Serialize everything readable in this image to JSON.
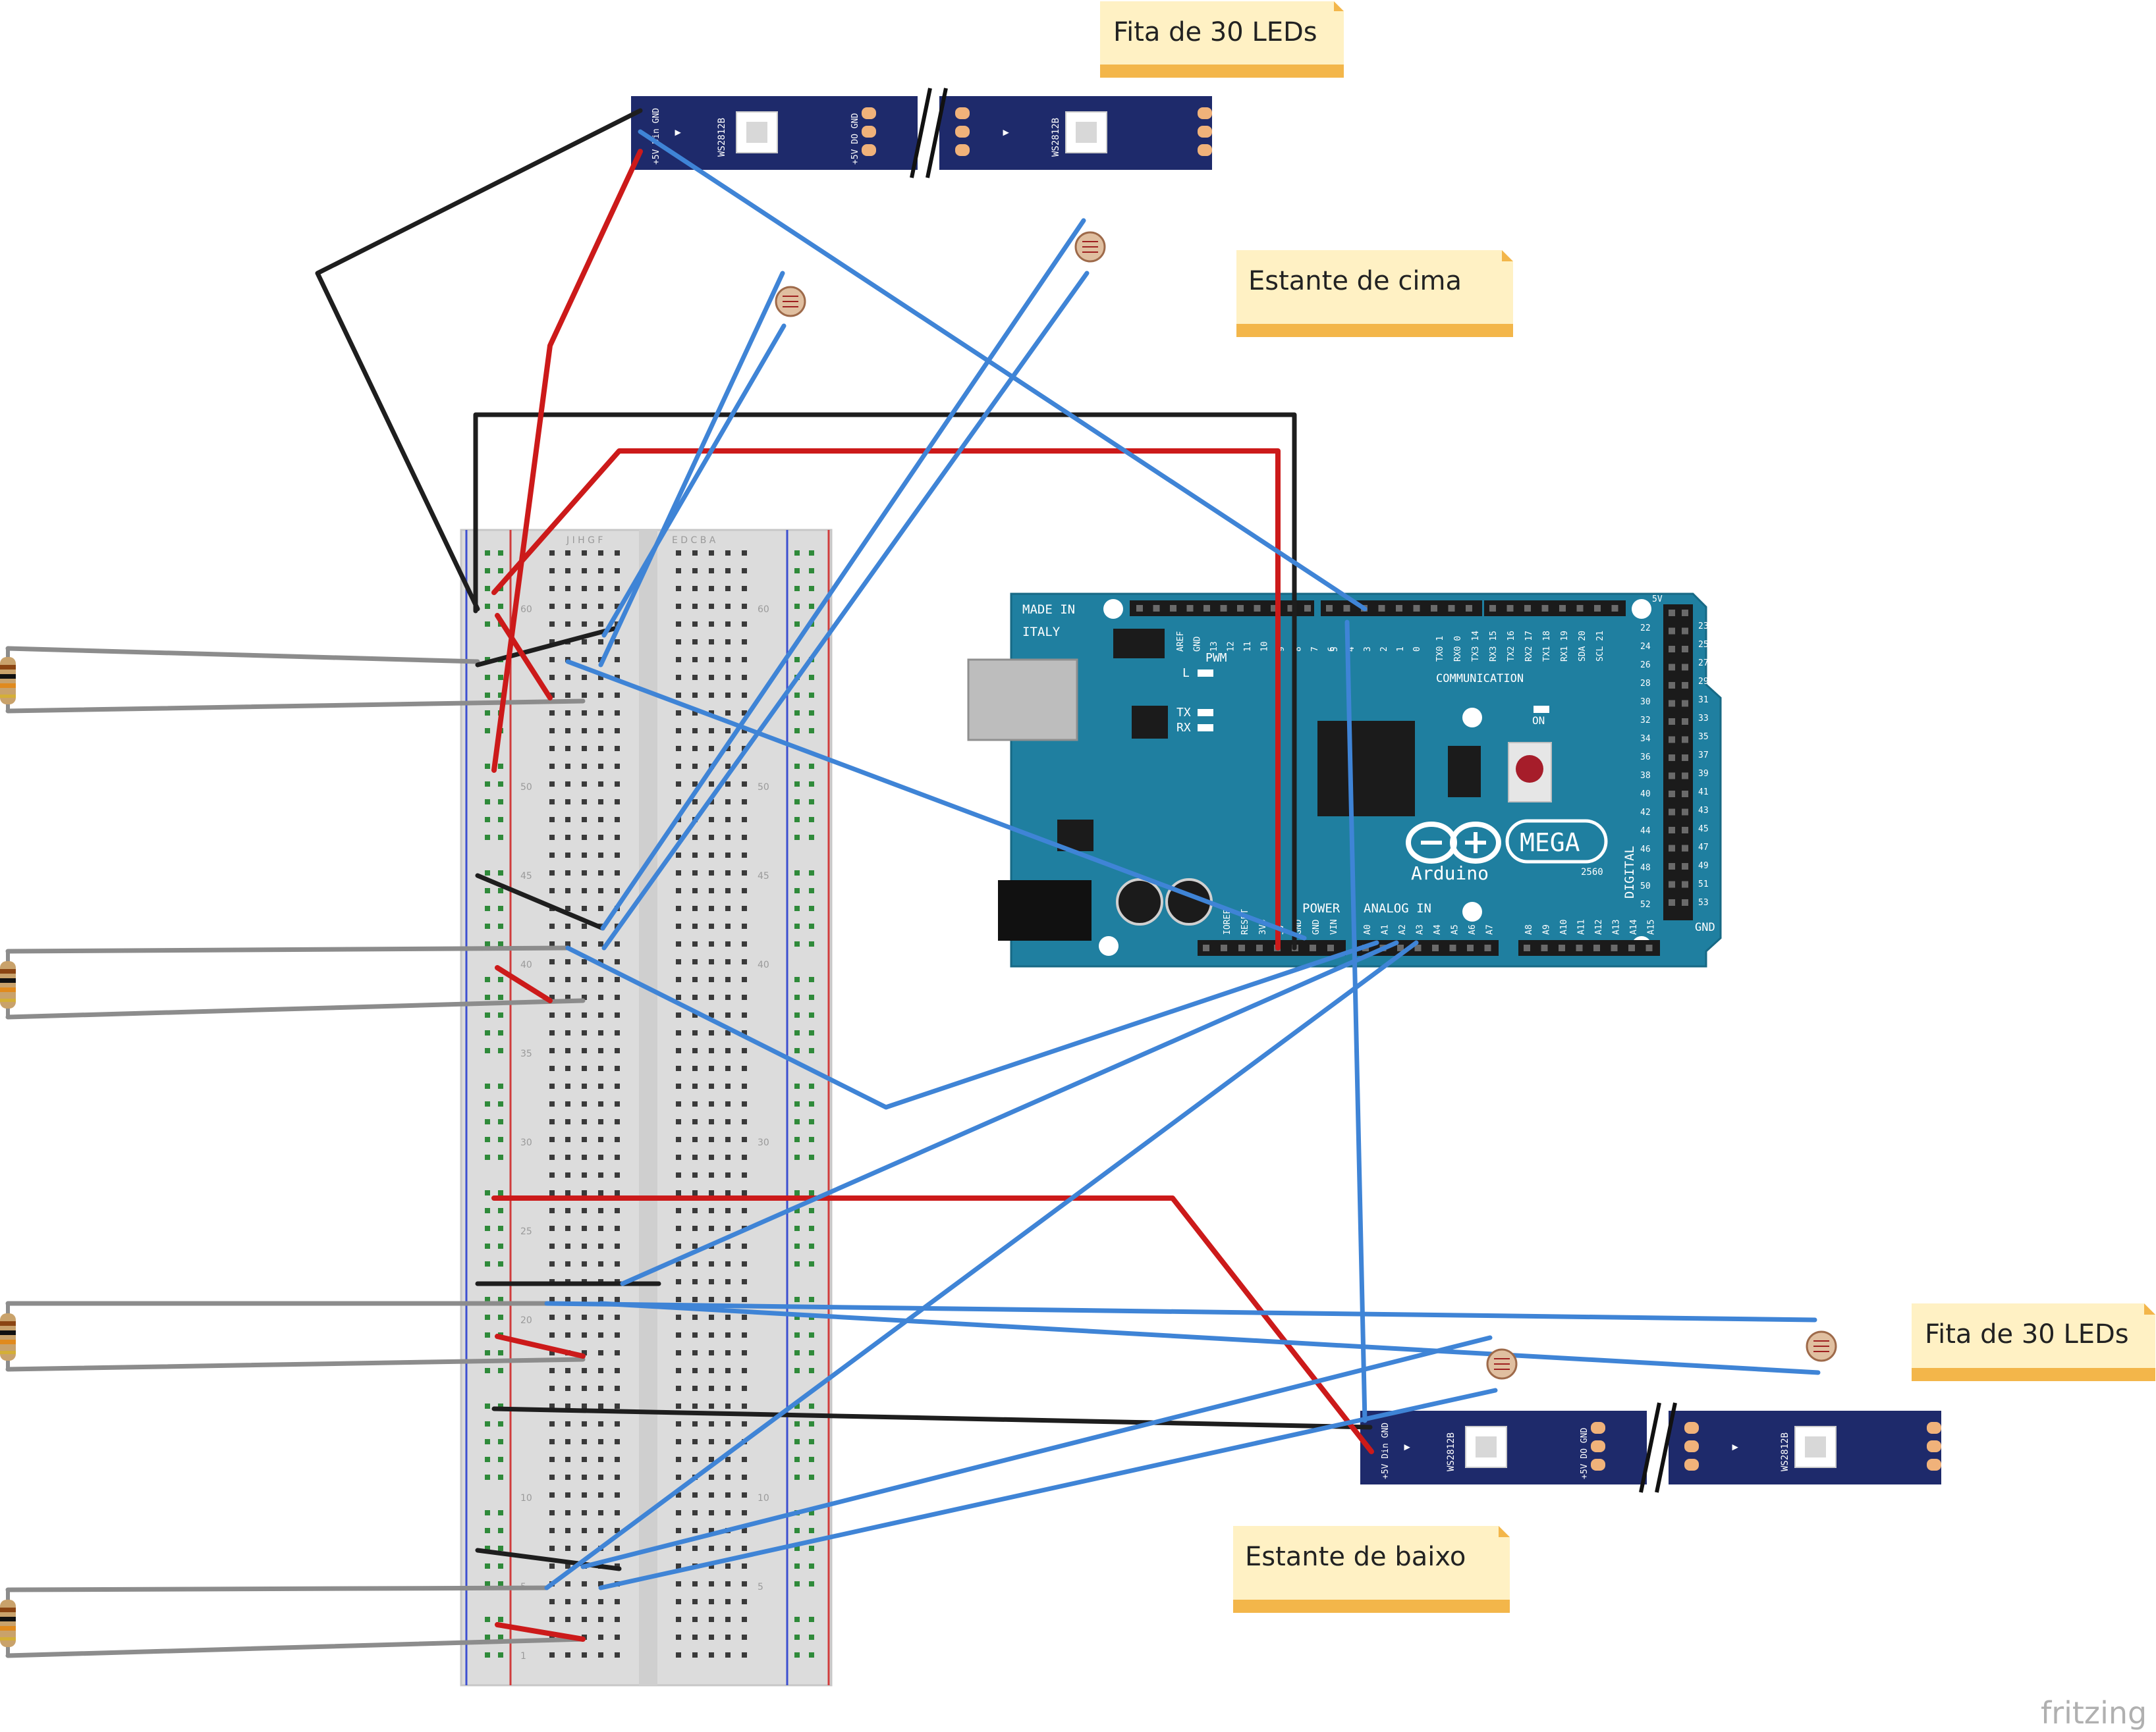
{
  "notes": {
    "top_strip": "Fita de 30 LEDs",
    "top_shelf": "Estante de cima",
    "bottom_strip": "Fita de 30 LEDs",
    "bottom_shelf": "Estante de baixo"
  },
  "led_strip": {
    "chip_label": "WS2812B",
    "pin_left": "+5V Din GND",
    "pin_mid": "+5V DO GND",
    "arrow": "▸"
  },
  "arduino": {
    "made_in": "MADE IN",
    "italy": "ITALY",
    "brand": "Arduino",
    "model": "MEGA",
    "model_sub": "2560",
    "pwm": "PWM",
    "communication": "COMMUNICATION",
    "power": "POWER",
    "analog_in": "ANALOG IN",
    "digital": "DIGITAL",
    "led_l": "L",
    "led_tx": "TX",
    "led_rx": "RX",
    "led_on": "ON",
    "gnd": "GND",
    "top_pins": [
      "AREF",
      "GND",
      "13",
      "12",
      "11",
      "10",
      "9",
      "8",
      "7",
      "6",
      "5",
      "4",
      "3",
      "2",
      "1",
      "0"
    ],
    "comm_pins": [
      "TX0 1",
      "RX0 0",
      "TX3 14",
      "RX3 15",
      "TX2 16",
      "RX2 17",
      "TX1 18",
      "RX1 19",
      "SDA 20",
      "SCL 21"
    ],
    "power_pins": [
      "IOREF",
      "RESET",
      "3V3",
      "5V",
      "GND",
      "GND",
      "VIN"
    ],
    "analog_pins": [
      "A0",
      "A1",
      "A2",
      "A3",
      "A4",
      "A5",
      "A6",
      "A7",
      "A8",
      "A9",
      "A10",
      "A11",
      "A12",
      "A13",
      "A14",
      "A15"
    ],
    "side_left": [
      "22",
      "24",
      "26",
      "28",
      "30",
      "32",
      "34",
      "36",
      "38",
      "40",
      "42",
      "44",
      "46",
      "48",
      "50",
      "52"
    ],
    "side_right": [
      "23",
      "25",
      "27",
      "29",
      "31",
      "33",
      "35",
      "37",
      "39",
      "41",
      "43",
      "45",
      "47",
      "49",
      "51",
      "53"
    ],
    "side_5v": "5V"
  },
  "breadboard": {
    "row_labels": [
      "60",
      "55",
      "50",
      "45",
      "40",
      "35",
      "30",
      "25",
      "20",
      "15",
      "10",
      "5",
      "1"
    ],
    "col_letters_left": "J I H G F",
    "col_letters_right": "E D C B A"
  },
  "watermark": "fritzing",
  "colors": {
    "wire_red": "#cc1a1a",
    "wire_black": "#1e1e1e",
    "wire_blue": "#3f84d6",
    "wire_gray": "#8c8c8c",
    "pcb_teal": "#1f7fa0",
    "strip_navy": "#1e2a6b",
    "note_yellow": "#fff1c4",
    "note_fold": "#f3b64a"
  }
}
